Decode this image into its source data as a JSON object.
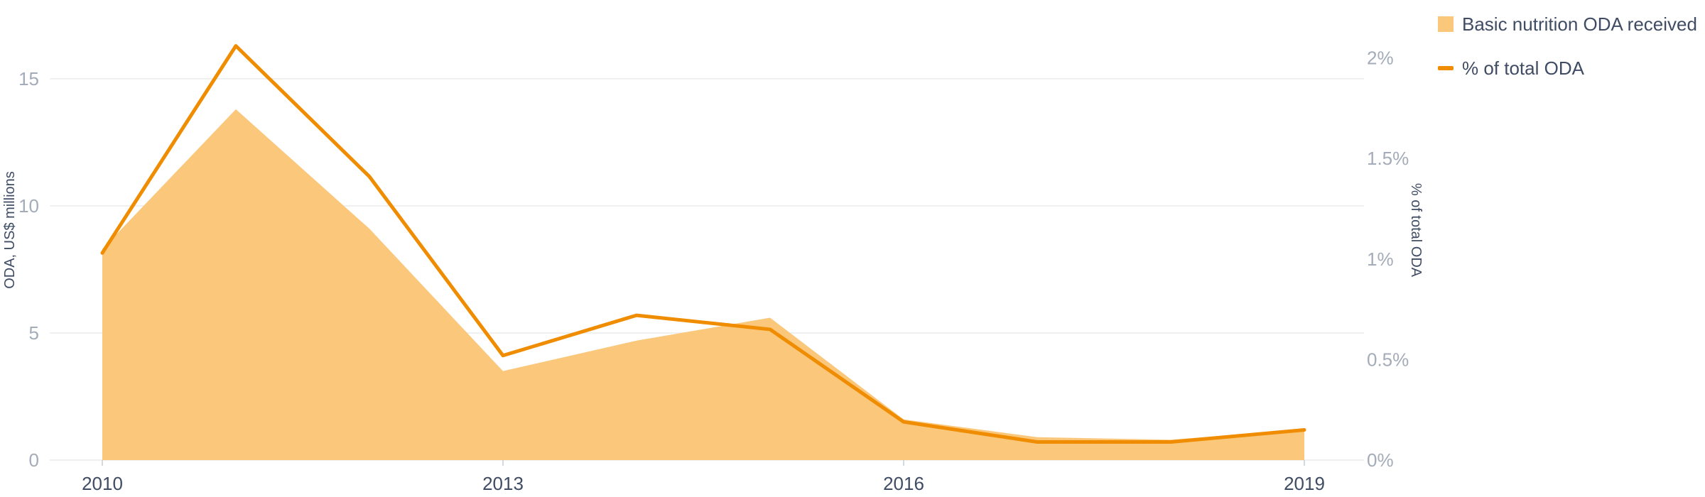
{
  "chart_data": {
    "type": "area",
    "x": [
      2010,
      2011,
      2012,
      2013,
      2014,
      2015,
      2016,
      2017,
      2018,
      2019
    ],
    "x_ticks": [
      "2010",
      "2013",
      "2016",
      "2019"
    ],
    "series": [
      {
        "name": "Basic nutrition ODA received",
        "type": "area",
        "axis": "left",
        "values": [
          8.3,
          13.8,
          9.1,
          3.5,
          4.7,
          5.6,
          1.6,
          0.9,
          0.8,
          1.2
        ]
      },
      {
        "name": "% of total ODA",
        "type": "line",
        "axis": "right",
        "values": [
          1.03,
          2.06,
          1.41,
          0.52,
          0.72,
          0.65,
          0.19,
          0.09,
          0.09,
          0.15
        ]
      }
    ],
    "y_left": {
      "label": "ODA, US$ millions",
      "ylim": [
        0,
        17.4
      ],
      "ticks": [
        0,
        5,
        10,
        15
      ],
      "tick_labels": [
        "0",
        "5",
        "10",
        "15"
      ]
    },
    "y_right": {
      "label": "% of total ODA",
      "ylim": [
        0,
        2.2
      ],
      "ticks": [
        0,
        0.5,
        1,
        1.5,
        2
      ],
      "tick_labels": [
        "0%",
        "0.5%",
        "1%",
        "1.5%",
        "2%"
      ]
    },
    "grid": true,
    "legend_position": "top-right",
    "colors": {
      "area": "#fac77b",
      "line": "#f08c00",
      "grid": "#ebebeb",
      "tick_text": "#a3acb8",
      "axis_text": "#3f4c63"
    }
  }
}
